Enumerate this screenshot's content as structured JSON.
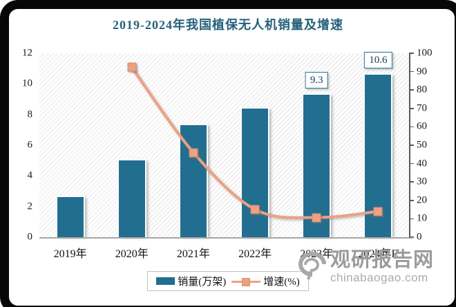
{
  "title": "2019-2024年我国植保无人机销量及增速",
  "chart_data": {
    "type": "combo_bar_line",
    "title": "2019-2024年我国植保无人机销量及增速",
    "categories": [
      "2019年",
      "2020年",
      "2021年",
      "2022年",
      "2023年",
      "2024年E"
    ],
    "series": [
      {
        "name": "销量(万架)",
        "type": "bar",
        "axis": "left",
        "values": [
          2.6,
          5.0,
          7.3,
          8.4,
          9.3,
          10.6
        ],
        "data_labels": [
          null,
          null,
          null,
          null,
          "9.3",
          "10.6"
        ],
        "color": "#226E91"
      },
      {
        "name": "增速(%)",
        "type": "line",
        "axis": "right",
        "values": [
          null,
          92.3,
          46.0,
          15.1,
          10.7,
          14.0
        ],
        "color": "#EDA184"
      }
    ],
    "axes": {
      "left": {
        "min": 0,
        "max": 12,
        "step": 2,
        "ticks": [
          0,
          2,
          4,
          6,
          8,
          10,
          12
        ]
      },
      "right": {
        "min": 0,
        "max": 100,
        "step": 10,
        "ticks": [
          0,
          10,
          20,
          30,
          40,
          50,
          60,
          70,
          80,
          90,
          100
        ]
      }
    },
    "legend": [
      "销量(万架)",
      "增速(%)"
    ],
    "legend_position": "bottom",
    "grid": false,
    "plot_background": "diagonal-hatch"
  },
  "watermark": {
    "site_name": "观研报告网",
    "site_url": "chinabaogao.com"
  },
  "colors": {
    "bar": "#226E91",
    "line": "#EDA184",
    "title_text": "#25617A",
    "label_box_border": "#2D7396",
    "frame": "#070707"
  }
}
